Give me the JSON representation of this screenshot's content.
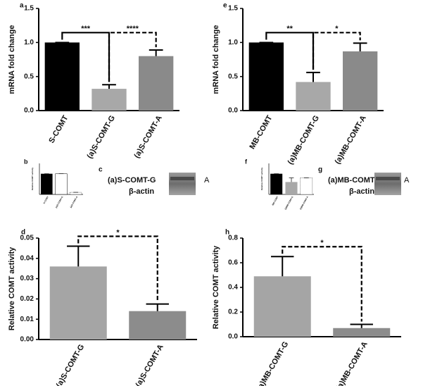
{
  "chart_data": [
    {
      "type": "bar",
      "panel": "a",
      "ylabel": "mRNA fold change",
      "categories": [
        "S-COMT",
        "(a)S-COMT-G",
        "(a)S-COMT-A"
      ],
      "values": [
        1.0,
        0.32,
        0.8
      ],
      "errors": [
        0,
        0.06,
        0.09
      ],
      "colors": [
        "#000000",
        "#a8a8a8",
        "#8a8a8a"
      ],
      "ylim": [
        0,
        1.5
      ],
      "yticks": [
        {
          "value": 0,
          "label": "0.0"
        },
        {
          "value": 0.5,
          "label": "0.5"
        },
        {
          "value": 1,
          "label": "1.0"
        },
        {
          "value": 1.5,
          "label": "1.5"
        }
      ],
      "significance": [
        {
          "label": "***",
          "dashed": false
        },
        {
          "label": "****",
          "dashed": true
        }
      ]
    },
    {
      "type": "bar",
      "panel": "e",
      "ylabel": "mRNA fold change",
      "categories": [
        "MB-COMT",
        "(a)MB-COMT-G",
        "(a)MB-COMT-A"
      ],
      "values": [
        1.0,
        0.42,
        0.87
      ],
      "errors": [
        0,
        0.14,
        0.12
      ],
      "colors": [
        "#000000",
        "#a8a8a8",
        "#8a8a8a"
      ],
      "ylim": [
        0,
        1.5
      ],
      "yticks": [
        {
          "value": 0,
          "label": "0.0"
        },
        {
          "value": 0.5,
          "label": "0.5"
        },
        {
          "value": 1,
          "label": "1.0"
        },
        {
          "value": 1.5,
          "label": "1.5"
        }
      ],
      "significance": [
        {
          "label": "**",
          "dashed": false
        },
        {
          "label": "*",
          "dashed": true
        }
      ]
    },
    {
      "type": "bar",
      "panel": "b",
      "ylabel": "Relative COMT activity",
      "categories": [
        "S-COMT",
        "(a)S-COMT-G",
        "(a)S-COMT-A"
      ],
      "values": [
        1.0,
        1.0,
        0.1
      ],
      "errors": [
        0,
        0,
        0
      ],
      "colors": [
        "#000000",
        "#ffffff",
        "#ffffff"
      ],
      "ylim": [
        0,
        1.5
      ],
      "yticks": [],
      "significance": []
    },
    {
      "type": "bar",
      "panel": "f",
      "ylabel": "Relative COMT activity",
      "categories": [
        "MB-COMT",
        "(a)MB-COMT-G",
        "(a)MB-COMT-A"
      ],
      "values": [
        1.0,
        0.6,
        0.8
      ],
      "errors": [
        0,
        0.2,
        0
      ],
      "colors": [
        "#000000",
        "#a8a8a8",
        "#ffffff"
      ],
      "ylim": [
        0,
        1.5
      ],
      "yticks": [],
      "significance": []
    },
    {
      "type": "bar",
      "panel": "d",
      "ylabel": "Relative COMT activity",
      "categories": [
        "(a)S-COMT-G",
        "(a)S-COMT-A"
      ],
      "values": [
        0.036,
        0.014
      ],
      "errors": [
        0.01,
        0.0035
      ],
      "colors": [
        "#a5a5a5",
        "#8c8c8c"
      ],
      "ylim": [
        0,
        0.05
      ],
      "yticks": [
        {
          "value": 0,
          "label": "0.00"
        },
        {
          "value": 0.01,
          "label": "0.01"
        },
        {
          "value": 0.02,
          "label": "0.02"
        },
        {
          "value": 0.03,
          "label": "0.03"
        },
        {
          "value": 0.04,
          "label": "0.04"
        },
        {
          "value": 0.05,
          "label": "0.05"
        }
      ],
      "significance": [
        {
          "label": "*",
          "dashed": true
        }
      ]
    },
    {
      "type": "bar",
      "panel": "h",
      "ylabel": "Relative COMT activity",
      "categories": [
        "(a)MB-COMT-G",
        "(a)MB-COMT-A"
      ],
      "values": [
        0.49,
        0.07
      ],
      "errors": [
        0.16,
        0.03
      ],
      "colors": [
        "#a5a5a5",
        "#8c8c8c"
      ],
      "ylim": [
        0,
        0.8
      ],
      "yticks": [
        {
          "value": 0,
          "label": "0.0"
        },
        {
          "value": 0.2,
          "label": "0.2"
        },
        {
          "value": 0.4,
          "label": "0.4"
        },
        {
          "value": 0.6,
          "label": "0.6"
        },
        {
          "value": 0.8,
          "label": "0.8"
        }
      ],
      "significance": [
        {
          "label": "*",
          "dashed": true
        }
      ]
    }
  ],
  "blots": [
    {
      "panel": "c",
      "label": "(a)S-COMT-G",
      "control": "β-actin",
      "marker": "A"
    },
    {
      "panel": "g",
      "label": "(a)MB-COMT-G",
      "control": "β-actin",
      "marker": "A"
    }
  ]
}
